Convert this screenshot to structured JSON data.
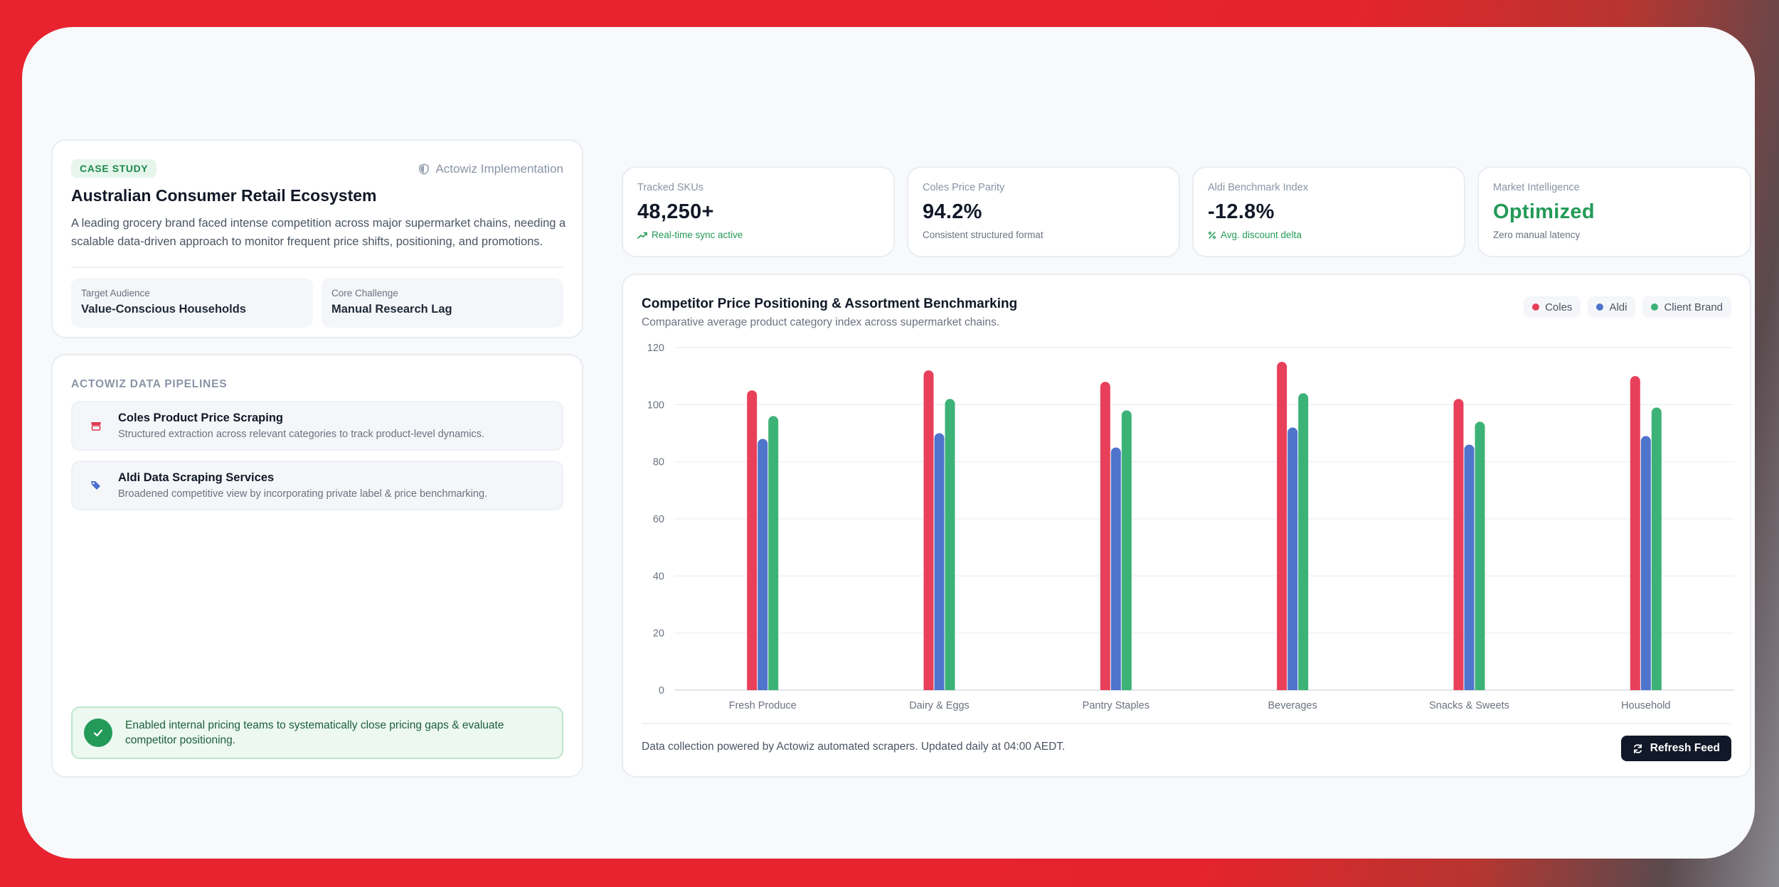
{
  "intro": {
    "tag": "CASE STUDY",
    "implementation": "Actowiz Implementation",
    "title": "Australian Consumer Retail Ecosystem",
    "description": "A leading grocery brand faced intense competition across major supermarket chains, needing a scalable data-driven approach to monitor frequent price shifts, positioning, and promotions.",
    "target_label": "Target Audience",
    "target_value": "Value-Conscious Households",
    "challenge_label": "Core Challenge",
    "challenge_value": "Manual Research Lag"
  },
  "pipelines": {
    "heading": "ACTOWIZ DATA PIPELINES",
    "items": [
      {
        "title": "Coles Product Price Scraping",
        "desc": "Structured extraction across relevant categories to track product-level dynamics.",
        "icon": "store-icon",
        "color": "#e03a50"
      },
      {
        "title": "Aldi Data Scraping Services",
        "desc": "Broadened competitive view by incorporating private label & price benchmarking.",
        "icon": "tags-icon",
        "color": "#4a6fd0"
      }
    ],
    "success": "Enabled internal pricing teams to systematically close pricing gaps & evaluate competitor positioning."
  },
  "stats": [
    {
      "label": "Tracked SKUs",
      "value": "48,250+",
      "sub": "Real-time sync active",
      "sub_color": "green"
    },
    {
      "label": "Coles Price Parity",
      "value": "94.2%",
      "sub": "Consistent structured format",
      "sub_color": "gray"
    },
    {
      "label": "Aldi Benchmark Index",
      "value": "-12.8%",
      "sub": "Avg. discount delta",
      "sub_color": "green"
    },
    {
      "label": "Market Intelligence",
      "value": "Optimized",
      "sub": "Zero manual latency",
      "sub_color": "gray"
    }
  ],
  "chart": {
    "title": "Competitor Price Positioning & Assortment Benchmarking",
    "subtitle": "Comparative average product category index across supermarket chains.",
    "footer": "Data collection powered by Actowiz automated scrapers. Updated daily at 04:00 AEDT.",
    "refresh_label": "Refresh Feed"
  },
  "chart_data": {
    "type": "bar",
    "categories": [
      "Fresh Produce",
      "Dairy & Eggs",
      "Pantry Staples",
      "Beverages",
      "Snacks & Sweets",
      "Household"
    ],
    "series": [
      {
        "name": "Coles",
        "color": "#e8405a",
        "values": [
          105,
          112,
          108,
          115,
          102,
          110
        ]
      },
      {
        "name": "Aldi",
        "color": "#4f74cc",
        "values": [
          88,
          90,
          85,
          92,
          86,
          89
        ]
      },
      {
        "name": "Client Brand",
        "color": "#3db277",
        "values": [
          96,
          102,
          98,
          104,
          94,
          99
        ]
      }
    ],
    "ylim": [
      0,
      120
    ],
    "yticks": [
      0,
      20,
      40,
      60,
      80,
      100,
      120
    ],
    "grid": true,
    "legend": "top-right"
  }
}
